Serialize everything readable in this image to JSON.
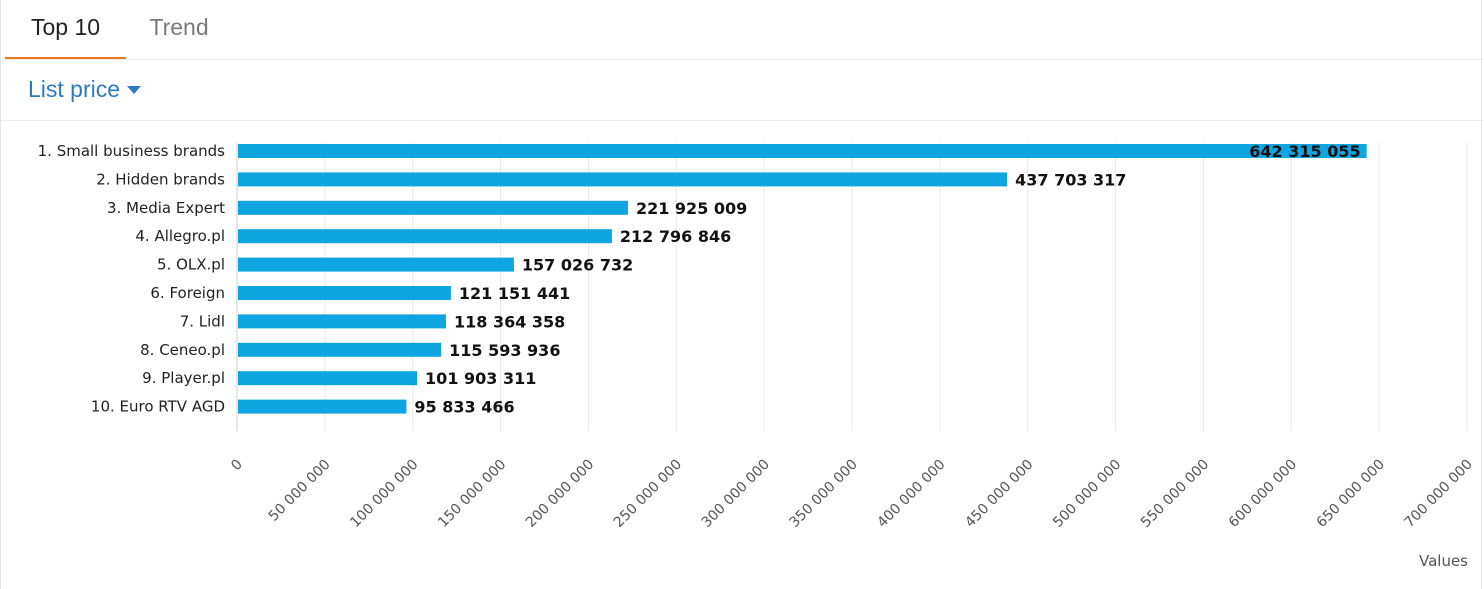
{
  "tabs": [
    {
      "label": "Top 10",
      "active": true
    },
    {
      "label": "Trend",
      "active": false
    }
  ],
  "measure": {
    "label": "List price"
  },
  "colors": {
    "bar": "#0ea5e0",
    "accent": "#e8791d",
    "link": "#2e7bc4"
  },
  "chart_data": {
    "type": "bar",
    "orientation": "horizontal",
    "categories": [
      "1. Small business brands",
      "2. Hidden brands",
      "3. Media Expert",
      "4. Allegro.pl",
      "5. OLX.pl",
      "6. Foreign",
      "7. Lidl",
      "8. Ceneo.pl",
      "9. Player.pl",
      "10. Euro RTV AGD"
    ],
    "values": [
      642315055,
      437703317,
      221925009,
      212796846,
      157026732,
      121151441,
      118364358,
      115593936,
      101903311,
      95833466
    ],
    "value_labels": [
      "642 315 055",
      "437 703 317",
      "221 925 009",
      "212 796 846",
      "157 026 732",
      "121 151 441",
      "118 364 358",
      "115 593 936",
      "101 903 311",
      "95 833 466"
    ],
    "xlim": [
      0,
      700000000
    ],
    "ticks": [
      0,
      50000000,
      100000000,
      150000000,
      200000000,
      250000000,
      300000000,
      350000000,
      400000000,
      450000000,
      500000000,
      550000000,
      600000000,
      650000000,
      700000000
    ],
    "tick_labels": [
      "0",
      "50 000 000",
      "100 000 000",
      "150 000 000",
      "200 000 000",
      "250 000 000",
      "300 000 000",
      "350 000 000",
      "400 000 000",
      "450 000 000",
      "500 000 000",
      "550 000 000",
      "600 000 000",
      "650 000 000",
      "700 000 000"
    ],
    "xlabel": "Values",
    "grid": true
  }
}
